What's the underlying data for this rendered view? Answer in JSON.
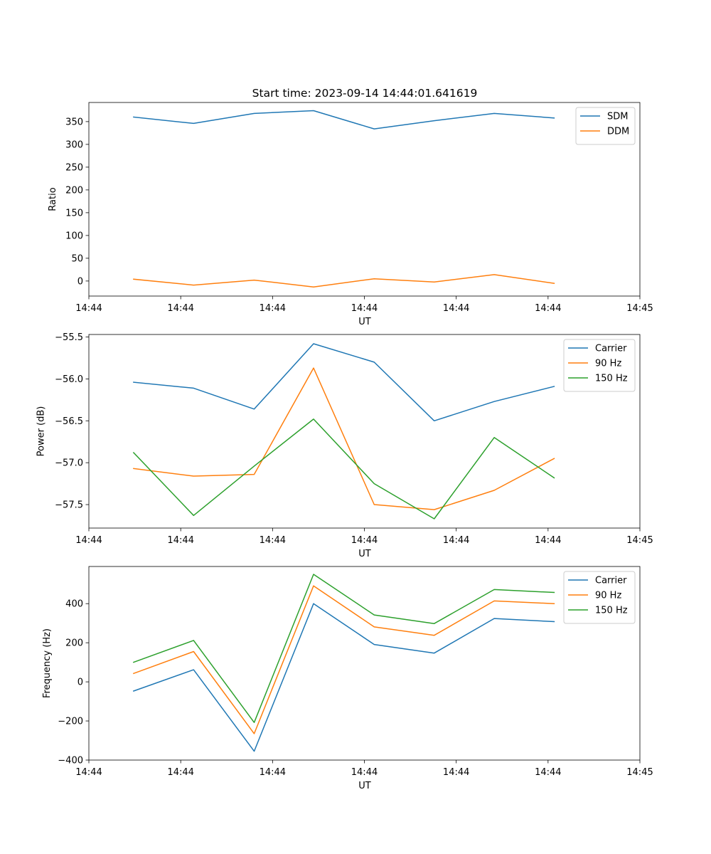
{
  "title": "Start time: 2023-09-14 14:44:01.641619",
  "chart_data": [
    {
      "type": "line",
      "title": "Start time: 2023-09-14 14:44:01.641619",
      "xlabel": "UT",
      "ylabel": "Ratio",
      "xlim": [
        0,
        9.0
      ],
      "ylim": [
        -33,
        392
      ],
      "x_ticks": [
        0.0,
        1.5,
        3.0,
        4.5,
        6.0,
        7.5,
        9.0
      ],
      "x_tick_labels": [
        "14:44",
        "14:44",
        "14:44",
        "14:44",
        "14:44",
        "14:44",
        "14:45"
      ],
      "y_ticks": [
        0,
        50,
        100,
        150,
        200,
        250,
        300,
        350
      ],
      "y_tick_labels": [
        "0",
        "50",
        "100",
        "150",
        "200",
        "250",
        "300",
        "350"
      ],
      "x": [
        0.73,
        1.71,
        2.7,
        3.67,
        4.66,
        5.64,
        6.62,
        7.6
      ],
      "legend_position": "top-right",
      "series": [
        {
          "name": "SDM",
          "color": "#1f77b4",
          "values": [
            360,
            346,
            368,
            374,
            334,
            352,
            368,
            358
          ]
        },
        {
          "name": "DDM",
          "color": "#ff7f0e",
          "values": [
            4,
            -9,
            2,
            -13,
            5,
            -2,
            14,
            -5
          ]
        }
      ]
    },
    {
      "type": "line",
      "title": "",
      "xlabel": "UT",
      "ylabel": "Power (dB)",
      "xlim": [
        0,
        9.0
      ],
      "ylim": [
        -57.78,
        -55.47
      ],
      "x_ticks": [
        0.0,
        1.5,
        3.0,
        4.5,
        6.0,
        7.5,
        9.0
      ],
      "x_tick_labels": [
        "14:44",
        "14:44",
        "14:44",
        "14:44",
        "14:44",
        "14:44",
        "14:45"
      ],
      "y_ticks": [
        -57.5,
        -57.0,
        -56.5,
        -56.0,
        -55.5
      ],
      "y_tick_labels": [
        "−57.5",
        "−57.0",
        "−56.5",
        "−56.0",
        "−55.5"
      ],
      "x": [
        0.73,
        1.71,
        2.7,
        3.67,
        4.66,
        5.64,
        6.62,
        7.6
      ],
      "legend_position": "top-right",
      "series": [
        {
          "name": "Carrier",
          "color": "#1f77b4",
          "values": [
            -56.04,
            -56.11,
            -56.36,
            -55.58,
            -55.8,
            -56.5,
            -56.27,
            -56.09
          ]
        },
        {
          "name": "90 Hz",
          "color": "#ff7f0e",
          "values": [
            -57.07,
            -57.16,
            -57.14,
            -55.87,
            -57.5,
            -57.56,
            -57.33,
            -56.95
          ]
        },
        {
          "name": "150 Hz",
          "color": "#2ca02c",
          "values": [
            -56.88,
            -57.63,
            -57.04,
            -56.48,
            -57.25,
            -57.67,
            -56.7,
            -57.18
          ]
        }
      ]
    },
    {
      "type": "line",
      "title": "",
      "xlabel": "UT",
      "ylabel": "Frequency (Hz)",
      "xlim": [
        0,
        9.0
      ],
      "ylim": [
        -400,
        590
      ],
      "x_ticks": [
        0.0,
        1.5,
        3.0,
        4.5,
        6.0,
        7.5,
        9.0
      ],
      "x_tick_labels": [
        "14:44",
        "14:44",
        "14:44",
        "14:44",
        "14:44",
        "14:44",
        "14:45"
      ],
      "y_ticks": [
        -400,
        -200,
        0,
        200,
        400
      ],
      "y_tick_labels": [
        "−400",
        "−200",
        "0",
        "200",
        "400"
      ],
      "x": [
        0.73,
        1.71,
        2.7,
        3.67,
        4.66,
        5.64,
        6.62,
        7.6
      ],
      "legend_position": "top-right",
      "series": [
        {
          "name": "Carrier",
          "color": "#1f77b4",
          "values": [
            -47,
            62,
            -355,
            400,
            191,
            147,
            324,
            308
          ]
        },
        {
          "name": "90 Hz",
          "color": "#ff7f0e",
          "values": [
            43,
            155,
            -265,
            491,
            281,
            238,
            414,
            400
          ]
        },
        {
          "name": "150 Hz",
          "color": "#2ca02c",
          "values": [
            100,
            212,
            -208,
            550,
            342,
            298,
            472,
            457
          ]
        }
      ]
    }
  ]
}
